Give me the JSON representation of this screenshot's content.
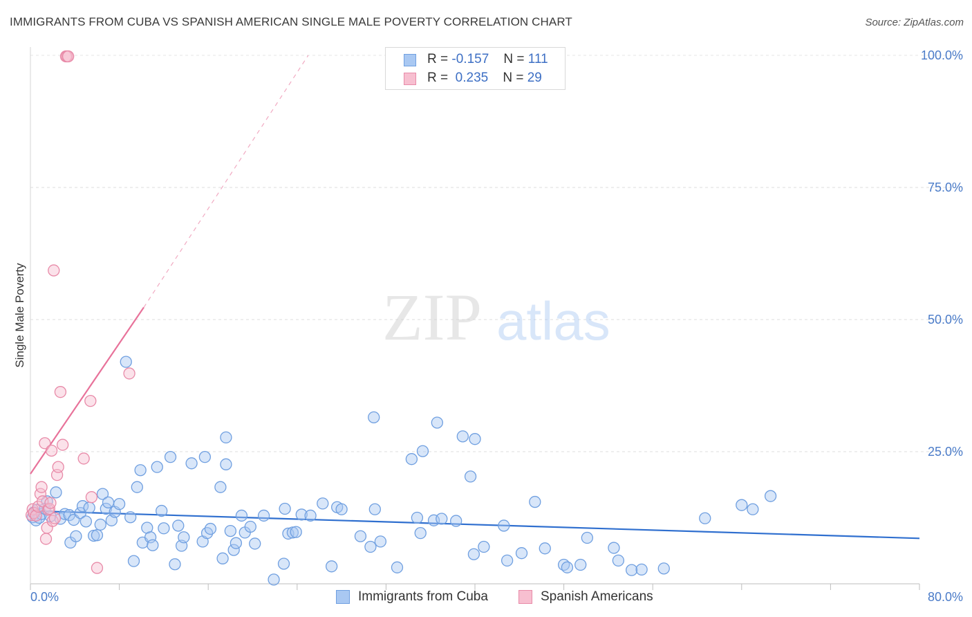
{
  "title": "IMMIGRANTS FROM CUBA VS SPANISH AMERICAN SINGLE MALE POVERTY CORRELATION CHART",
  "source": "Source: ZipAtlas.com",
  "watermark": {
    "zip": "ZIP",
    "atlas": "atlas"
  },
  "legend": {
    "r_label": "R =",
    "n_label": "N =",
    "rows": [
      {
        "r": "-0.157",
        "n": "111",
        "color": "#a9c8f2",
        "border": "#6f9fe0"
      },
      {
        "r": "0.235",
        "n": "29",
        "color": "#f7bfd0",
        "border": "#e88aa8"
      }
    ]
  },
  "chart_data": {
    "type": "scatter",
    "title": "IMMIGRANTS FROM CUBA VS SPANISH AMERICAN SINGLE MALE POVERTY CORRELATION CHART",
    "xlabel": "",
    "ylabel": "Single Male Poverty",
    "xlim": [
      0,
      80
    ],
    "ylim": [
      0,
      100
    ],
    "x_tick_labels": [
      "0.0%",
      "80.0%"
    ],
    "y_ticks": [
      25,
      50,
      75,
      100
    ],
    "y_tick_labels": [
      "25.0%",
      "50.0%",
      "75.0%",
      "100.0%"
    ],
    "grid": true,
    "series": [
      {
        "name": "Immigrants from Cuba",
        "color": "#6f9fe0",
        "fill": "#a9c8f2",
        "trend": {
          "x": [
            0,
            80
          ],
          "y": [
            13.8,
            8.6
          ],
          "color": "#2f6fcf"
        },
        "points": [
          [
            0.2,
            12.6
          ],
          [
            0.3,
            13.5
          ],
          [
            0.5,
            12.0
          ],
          [
            0.6,
            14.0
          ],
          [
            0.8,
            12.5
          ],
          [
            1.0,
            13.2
          ],
          [
            1.3,
            14.2
          ],
          [
            1.5,
            15.6
          ],
          [
            1.8,
            12.8
          ],
          [
            2.3,
            17.3
          ],
          [
            2.7,
            12.3
          ],
          [
            3.1,
            13.2
          ],
          [
            3.5,
            13.0
          ],
          [
            3.6,
            7.8
          ],
          [
            3.9,
            12.1
          ],
          [
            4.1,
            9.0
          ],
          [
            4.5,
            13.4
          ],
          [
            4.7,
            14.7
          ],
          [
            5.0,
            11.8
          ],
          [
            5.3,
            14.4
          ],
          [
            5.7,
            9.1
          ],
          [
            6.0,
            9.2
          ],
          [
            6.3,
            11.2
          ],
          [
            6.5,
            17.0
          ],
          [
            6.8,
            14.2
          ],
          [
            7.0,
            15.4
          ],
          [
            7.3,
            12.0
          ],
          [
            7.6,
            13.6
          ],
          [
            8.0,
            15.1
          ],
          [
            8.6,
            42.0
          ],
          [
            9.0,
            12.6
          ],
          [
            9.3,
            4.3
          ],
          [
            9.6,
            18.3
          ],
          [
            9.9,
            21.5
          ],
          [
            10.1,
            7.8
          ],
          [
            10.5,
            10.6
          ],
          [
            10.8,
            8.8
          ],
          [
            11.0,
            7.3
          ],
          [
            11.4,
            22.1
          ],
          [
            11.8,
            13.8
          ],
          [
            12.0,
            10.5
          ],
          [
            12.6,
            24.0
          ],
          [
            13.0,
            3.7
          ],
          [
            13.3,
            11.0
          ],
          [
            13.6,
            7.2
          ],
          [
            13.8,
            8.8
          ],
          [
            14.5,
            22.8
          ],
          [
            15.5,
            8.0
          ],
          [
            15.7,
            24.0
          ],
          [
            15.9,
            9.6
          ],
          [
            16.2,
            10.4
          ],
          [
            17.1,
            18.3
          ],
          [
            17.3,
            4.8
          ],
          [
            17.6,
            27.7
          ],
          [
            17.6,
            22.6
          ],
          [
            18.0,
            10.0
          ],
          [
            18.3,
            6.4
          ],
          [
            18.5,
            7.7
          ],
          [
            19.0,
            12.9
          ],
          [
            19.3,
            9.7
          ],
          [
            19.8,
            10.8
          ],
          [
            20.2,
            7.6
          ],
          [
            21.0,
            12.9
          ],
          [
            21.9,
            0.8
          ],
          [
            22.8,
            3.8
          ],
          [
            22.9,
            14.2
          ],
          [
            23.2,
            9.5
          ],
          [
            23.6,
            9.7
          ],
          [
            23.9,
            9.8
          ],
          [
            24.4,
            13.1
          ],
          [
            25.2,
            12.9
          ],
          [
            26.3,
            15.2
          ],
          [
            27.1,
            3.3
          ],
          [
            27.6,
            14.5
          ],
          [
            28.0,
            14.1
          ],
          [
            29.7,
            9.0
          ],
          [
            30.6,
            7.0
          ],
          [
            30.9,
            31.5
          ],
          [
            31.0,
            14.1
          ],
          [
            31.5,
            8.0
          ],
          [
            33.0,
            3.1
          ],
          [
            34.3,
            23.6
          ],
          [
            34.8,
            12.5
          ],
          [
            35.1,
            9.6
          ],
          [
            35.3,
            25.1
          ],
          [
            36.3,
            12.0
          ],
          [
            36.6,
            30.5
          ],
          [
            37.0,
            12.3
          ],
          [
            38.3,
            11.9
          ],
          [
            38.9,
            27.9
          ],
          [
            39.6,
            20.3
          ],
          [
            39.9,
            5.6
          ],
          [
            40.0,
            27.4
          ],
          [
            40.8,
            7.0
          ],
          [
            42.6,
            11.0
          ],
          [
            42.9,
            4.4
          ],
          [
            44.2,
            5.8
          ],
          [
            45.4,
            15.5
          ],
          [
            46.3,
            6.7
          ],
          [
            48.0,
            3.6
          ],
          [
            48.3,
            3.1
          ],
          [
            49.5,
            3.6
          ],
          [
            50.1,
            8.7
          ],
          [
            52.5,
            6.8
          ],
          [
            52.9,
            4.4
          ],
          [
            54.1,
            2.6
          ],
          [
            55.0,
            2.7
          ],
          [
            57.0,
            2.9
          ],
          [
            60.7,
            12.4
          ],
          [
            64.0,
            14.9
          ],
          [
            65.0,
            14.1
          ],
          [
            66.6,
            16.6
          ]
        ]
      },
      {
        "name": "Spanish Americans",
        "color": "#e88aa8",
        "fill": "#f7bfd0",
        "trend": {
          "x": [
            0,
            10.2
          ],
          "y": [
            20.8,
            52.3
          ],
          "dash_to": [
            25,
            100
          ],
          "color": "#e8729a"
        },
        "points": [
          [
            0.1,
            13.0
          ],
          [
            0.2,
            14.1
          ],
          [
            0.3,
            13.4
          ],
          [
            0.5,
            12.9
          ],
          [
            0.7,
            14.6
          ],
          [
            0.9,
            17.0
          ],
          [
            1.0,
            18.3
          ],
          [
            1.1,
            15.6
          ],
          [
            1.3,
            26.6
          ],
          [
            1.4,
            8.5
          ],
          [
            1.5,
            10.6
          ],
          [
            1.6,
            14.0
          ],
          [
            1.7,
            14.2
          ],
          [
            1.8,
            15.3
          ],
          [
            1.9,
            25.2
          ],
          [
            2.0,
            11.9
          ],
          [
            2.1,
            59.3
          ],
          [
            2.2,
            12.4
          ],
          [
            2.4,
            20.6
          ],
          [
            2.5,
            22.1
          ],
          [
            2.7,
            36.3
          ],
          [
            2.9,
            26.3
          ],
          [
            3.2,
            99.8
          ],
          [
            3.3,
            99.8
          ],
          [
            3.4,
            99.8
          ],
          [
            4.8,
            23.7
          ],
          [
            5.4,
            34.6
          ],
          [
            5.5,
            16.4
          ],
          [
            6.0,
            3.0
          ],
          [
            8.9,
            39.8
          ]
        ]
      }
    ]
  },
  "bottom_legend": [
    {
      "label": "Immigrants from Cuba",
      "color": "#a9c8f2",
      "border": "#6f9fe0"
    },
    {
      "label": "Spanish Americans",
      "color": "#f7bfd0",
      "border": "#e88aa8"
    }
  ]
}
